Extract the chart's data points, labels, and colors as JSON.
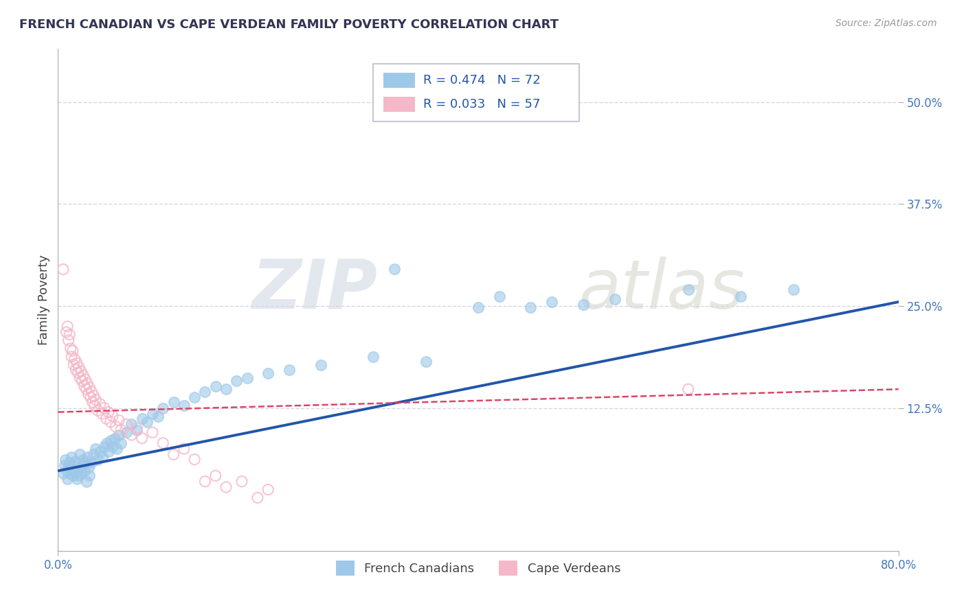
{
  "title": "FRENCH CANADIAN VS CAPE VERDEAN FAMILY POVERTY CORRELATION CHART",
  "source": "Source: ZipAtlas.com",
  "ylabel": "Family Poverty",
  "xlim": [
    0.0,
    0.8
  ],
  "ylim": [
    -0.05,
    0.565
  ],
  "ytick_positions": [
    0.125,
    0.25,
    0.375,
    0.5
  ],
  "ytick_labels": [
    "12.5%",
    "25.0%",
    "37.5%",
    "50.0%"
  ],
  "xtick_positions": [
    0.0,
    0.8
  ],
  "xticklabels": [
    "0.0%",
    "80.0%"
  ],
  "blue_color": "#9ec8e8",
  "pink_color": "#f5b8c8",
  "blue_line_color": "#2255aa",
  "pink_line_color": "#dd4466",
  "title_color": "#333355",
  "tick_color": "#4477bb",
  "grid_color": "#ccccdd",
  "bg_color": "#ffffff",
  "watermark_zip_color": "#d8dde8",
  "watermark_atlas_color": "#d8d8d0",
  "blue_line_x": [
    0.0,
    0.8
  ],
  "blue_line_y": [
    0.048,
    0.255
  ],
  "pink_line_x": [
    0.0,
    0.8
  ],
  "pink_line_y": [
    0.12,
    0.148
  ],
  "blue_scatter": [
    [
      0.005,
      0.045
    ],
    [
      0.006,
      0.055
    ],
    [
      0.007,
      0.062
    ],
    [
      0.008,
      0.048
    ],
    [
      0.009,
      0.038
    ],
    [
      0.01,
      0.052
    ],
    [
      0.011,
      0.058
    ],
    [
      0.012,
      0.045
    ],
    [
      0.013,
      0.065
    ],
    [
      0.014,
      0.042
    ],
    [
      0.015,
      0.055
    ],
    [
      0.016,
      0.048
    ],
    [
      0.017,
      0.06
    ],
    [
      0.018,
      0.038
    ],
    [
      0.019,
      0.05
    ],
    [
      0.02,
      0.042
    ],
    [
      0.021,
      0.068
    ],
    [
      0.022,
      0.045
    ],
    [
      0.023,
      0.055
    ],
    [
      0.024,
      0.062
    ],
    [
      0.025,
      0.048
    ],
    [
      0.026,
      0.058
    ],
    [
      0.027,
      0.035
    ],
    [
      0.028,
      0.065
    ],
    [
      0.029,
      0.052
    ],
    [
      0.03,
      0.042
    ],
    [
      0.032,
      0.058
    ],
    [
      0.034,
      0.068
    ],
    [
      0.036,
      0.075
    ],
    [
      0.038,
      0.062
    ],
    [
      0.04,
      0.072
    ],
    [
      0.042,
      0.065
    ],
    [
      0.044,
      0.078
    ],
    [
      0.046,
      0.082
    ],
    [
      0.048,
      0.072
    ],
    [
      0.05,
      0.085
    ],
    [
      0.052,
      0.078
    ],
    [
      0.054,
      0.088
    ],
    [
      0.056,
      0.075
    ],
    [
      0.058,
      0.092
    ],
    [
      0.06,
      0.082
    ],
    [
      0.065,
      0.095
    ],
    [
      0.07,
      0.105
    ],
    [
      0.075,
      0.098
    ],
    [
      0.08,
      0.112
    ],
    [
      0.085,
      0.108
    ],
    [
      0.09,
      0.118
    ],
    [
      0.095,
      0.115
    ],
    [
      0.1,
      0.125
    ],
    [
      0.11,
      0.132
    ],
    [
      0.12,
      0.128
    ],
    [
      0.13,
      0.138
    ],
    [
      0.14,
      0.145
    ],
    [
      0.15,
      0.152
    ],
    [
      0.16,
      0.148
    ],
    [
      0.17,
      0.158
    ],
    [
      0.18,
      0.162
    ],
    [
      0.2,
      0.168
    ],
    [
      0.22,
      0.172
    ],
    [
      0.25,
      0.178
    ],
    [
      0.3,
      0.188
    ],
    [
      0.32,
      0.295
    ],
    [
      0.35,
      0.182
    ],
    [
      0.4,
      0.248
    ],
    [
      0.42,
      0.262
    ],
    [
      0.45,
      0.248
    ],
    [
      0.47,
      0.255
    ],
    [
      0.5,
      0.252
    ],
    [
      0.53,
      0.258
    ],
    [
      0.6,
      0.27
    ],
    [
      0.65,
      0.262
    ],
    [
      0.7,
      0.27
    ]
  ],
  "pink_scatter": [
    [
      0.005,
      0.295
    ],
    [
      0.008,
      0.218
    ],
    [
      0.009,
      0.225
    ],
    [
      0.01,
      0.208
    ],
    [
      0.011,
      0.215
    ],
    [
      0.012,
      0.198
    ],
    [
      0.013,
      0.188
    ],
    [
      0.014,
      0.195
    ],
    [
      0.015,
      0.178
    ],
    [
      0.016,
      0.185
    ],
    [
      0.017,
      0.172
    ],
    [
      0.018,
      0.18
    ],
    [
      0.019,
      0.168
    ],
    [
      0.02,
      0.175
    ],
    [
      0.021,
      0.162
    ],
    [
      0.022,
      0.17
    ],
    [
      0.023,
      0.158
    ],
    [
      0.024,
      0.165
    ],
    [
      0.025,
      0.152
    ],
    [
      0.026,
      0.16
    ],
    [
      0.027,
      0.148
    ],
    [
      0.028,
      0.155
    ],
    [
      0.029,
      0.142
    ],
    [
      0.03,
      0.15
    ],
    [
      0.031,
      0.138
    ],
    [
      0.032,
      0.145
    ],
    [
      0.033,
      0.132
    ],
    [
      0.034,
      0.14
    ],
    [
      0.035,
      0.128
    ],
    [
      0.036,
      0.135
    ],
    [
      0.038,
      0.122
    ],
    [
      0.04,
      0.13
    ],
    [
      0.042,
      0.118
    ],
    [
      0.044,
      0.125
    ],
    [
      0.046,
      0.112
    ],
    [
      0.048,
      0.12
    ],
    [
      0.05,
      0.108
    ],
    [
      0.052,
      0.115
    ],
    [
      0.055,
      0.102
    ],
    [
      0.058,
      0.11
    ],
    [
      0.06,
      0.098
    ],
    [
      0.065,
      0.105
    ],
    [
      0.07,
      0.092
    ],
    [
      0.075,
      0.1
    ],
    [
      0.08,
      0.088
    ],
    [
      0.09,
      0.095
    ],
    [
      0.1,
      0.082
    ],
    [
      0.11,
      0.068
    ],
    [
      0.12,
      0.075
    ],
    [
      0.13,
      0.062
    ],
    [
      0.14,
      0.035
    ],
    [
      0.15,
      0.042
    ],
    [
      0.16,
      0.028
    ],
    [
      0.175,
      0.035
    ],
    [
      0.19,
      0.015
    ],
    [
      0.2,
      0.025
    ],
    [
      0.6,
      0.148
    ]
  ]
}
